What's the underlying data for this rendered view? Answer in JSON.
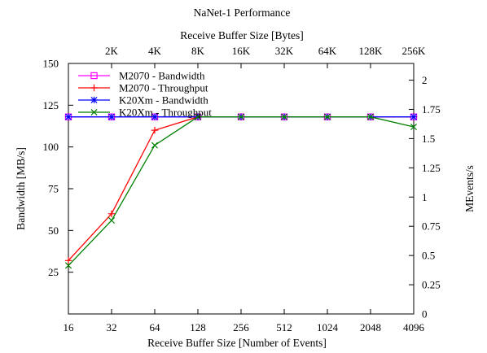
{
  "chart_data": {
    "type": "line",
    "title": "NaNet-1 Performance",
    "xlabel": "Receive Buffer Size [Number of Events]",
    "x2label": "Receive Buffer Size [Bytes]",
    "ylabel": "Bandwidth [MB/s]",
    "y2label": "MEvents/s",
    "x_scale": "log2",
    "x_ticks": [
      16,
      32,
      64,
      128,
      256,
      512,
      1024,
      2048,
      4096
    ],
    "x2_ticks": [
      "2K",
      "4K",
      "8K",
      "16K",
      "32K",
      "64K",
      "128K",
      "256K"
    ],
    "ylim": [
      0,
      150
    ],
    "y_ticks": [
      25,
      50,
      75,
      100,
      125,
      150
    ],
    "y2lim": [
      0,
      2.142857
    ],
    "y2_ticks": [
      "0",
      "0.25",
      "0.5",
      "0.75",
      "1",
      "1.25",
      "1.5",
      "1.75",
      "2"
    ],
    "grid": false,
    "legend_position": "top-left",
    "x": [
      16,
      32,
      64,
      128,
      256,
      512,
      1024,
      2048,
      4096
    ],
    "series": [
      {
        "name": "M2070 - Bandwidth",
        "color": "#ff00ff",
        "marker": "square",
        "values": [
          118,
          118,
          118,
          118,
          118,
          118,
          118,
          118,
          118
        ]
      },
      {
        "name": "M2070 - Throughput",
        "color": "#ff0000",
        "marker": "plus",
        "values": [
          32,
          60,
          110,
          118,
          118,
          118,
          118,
          118,
          118
        ]
      },
      {
        "name": "K20Xm - Bandwidth",
        "color": "#0000ff",
        "marker": "star",
        "values": [
          118,
          118,
          118,
          118,
          118,
          118,
          118,
          118,
          118
        ]
      },
      {
        "name": "K20Xm - Throughput",
        "color": "#008000",
        "marker": "cross",
        "values": [
          29,
          56,
          101,
          118,
          118,
          118,
          118,
          118,
          112
        ]
      }
    ]
  }
}
